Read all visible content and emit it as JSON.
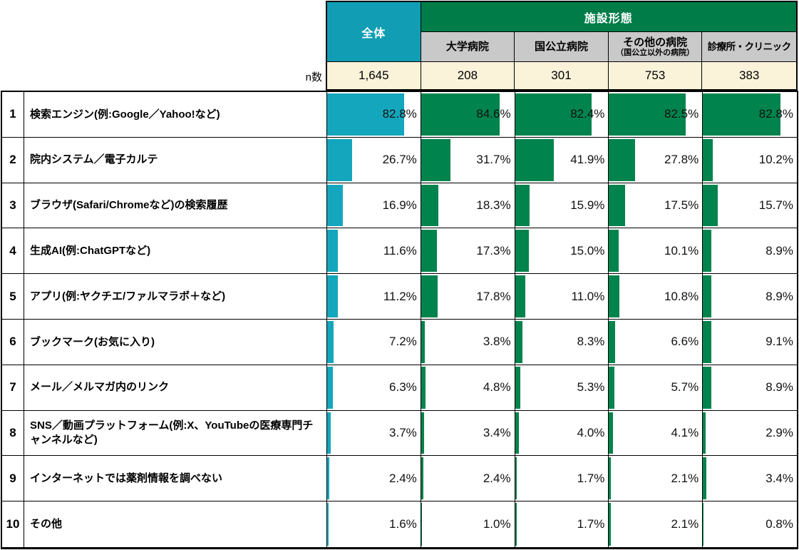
{
  "header": {
    "group_label": "施設形態",
    "n_label": "n数"
  },
  "ranks": [
    "1",
    "2",
    "3",
    "4",
    "5",
    "6",
    "7",
    "8",
    "9",
    "10"
  ],
  "chart_data": {
    "type": "bar",
    "orientation": "horizontal",
    "unit": "%",
    "xlim": [
      0,
      100
    ],
    "title": "",
    "categories": [
      "検索エンジン(例:Google／Yahoo!など)",
      "院内システム／電子カルテ",
      "ブラウザ(Safari/Chromeなど)の検索履歴",
      "生成AI(例:ChatGPTなど)",
      "アプリ(例:ヤクチエ/ファルマラボ＋など)",
      "ブックマーク(お気に入り)",
      "メール／メルマガ内のリンク",
      "SNS／動画プラットフォーム(例:X、YouTubeの医療専門チャンネルなど)",
      "インターネットでは薬剤情報を調べない",
      "その他"
    ],
    "series": [
      {
        "name": "全体",
        "n_display": "1,645",
        "n": 1645,
        "values": [
          82.8,
          26.7,
          16.9,
          11.6,
          11.2,
          7.2,
          6.3,
          3.7,
          2.4,
          1.6
        ]
      },
      {
        "name": "大学病院",
        "n_display": "208",
        "n": 208,
        "values": [
          84.6,
          31.7,
          18.3,
          17.3,
          17.8,
          3.8,
          4.8,
          3.4,
          2.4,
          1.0
        ]
      },
      {
        "name": "国公立病院",
        "n_display": "301",
        "n": 301,
        "values": [
          82.4,
          41.9,
          15.9,
          15.0,
          11.0,
          8.3,
          5.3,
          4.0,
          1.7,
          1.7
        ]
      },
      {
        "name": "その他の病院",
        "sub_label": "（国公立以外の病院）",
        "n_display": "753",
        "n": 753,
        "values": [
          82.5,
          27.8,
          17.5,
          10.1,
          10.8,
          6.6,
          5.7,
          4.1,
          2.1,
          2.1
        ]
      },
      {
        "name": "診療所・クリニック",
        "n_display": "383",
        "n": 383,
        "values": [
          82.8,
          10.2,
          15.7,
          8.9,
          8.9,
          9.1,
          8.9,
          2.9,
          3.4,
          0.8
        ]
      }
    ]
  },
  "colors": {
    "overall_header": "#119EB4",
    "overall_bar": "#14A6BC",
    "group_header": "#007C48",
    "group_bar": "#00834C",
    "subheader_bg": "#C9C9C9",
    "n_row_bg": "#FAF3DA",
    "border": "#000000"
  }
}
